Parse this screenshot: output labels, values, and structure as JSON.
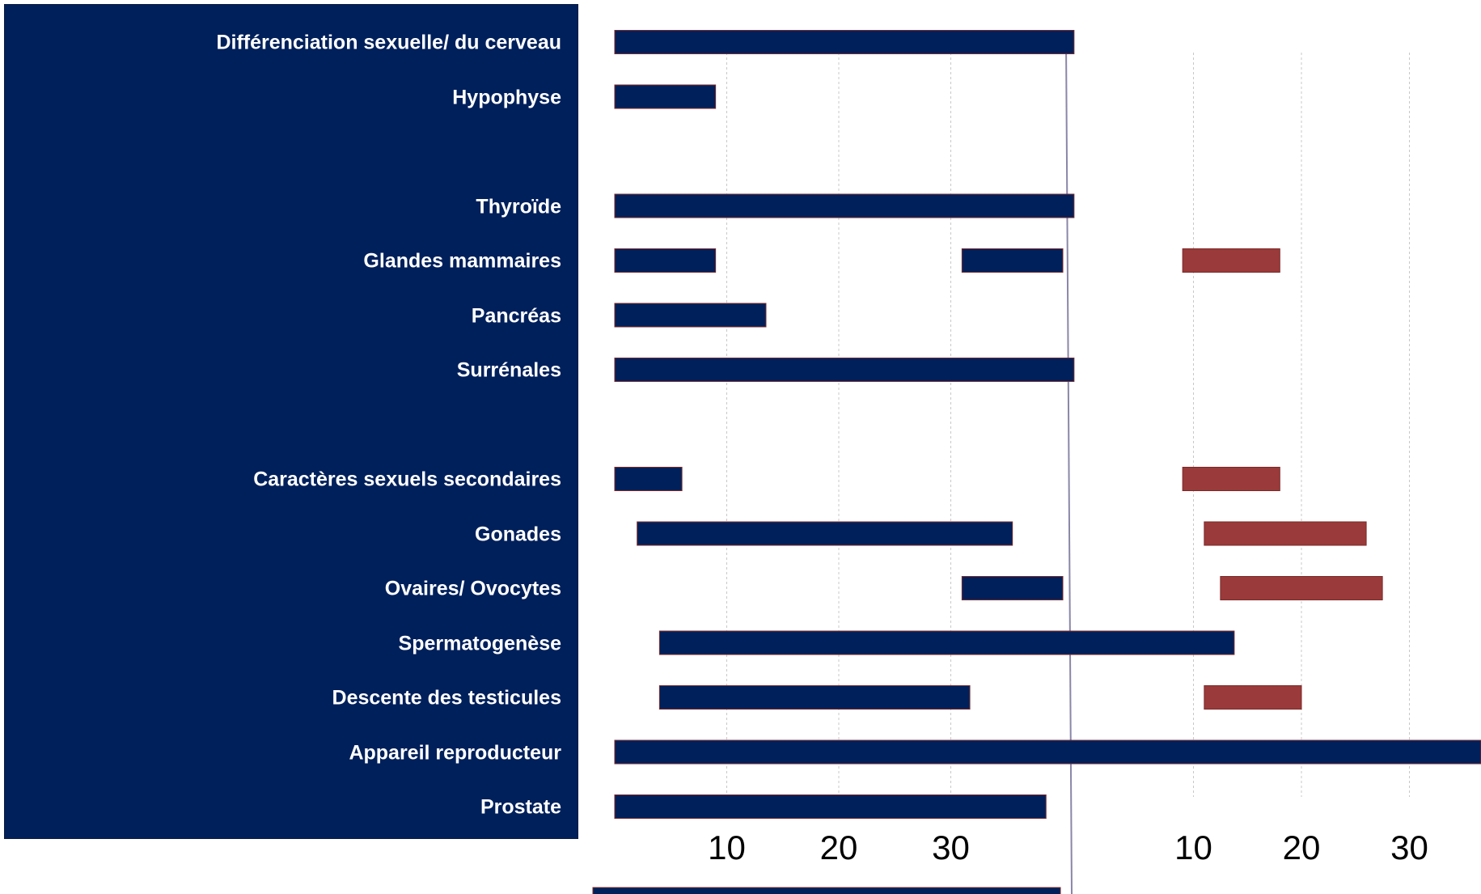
{
  "colors": {
    "panel": "#00205b",
    "prenatal_bar": "#00205b",
    "postnatal_bar": "#9b3a3a",
    "grid": "#c8c8c8",
    "birth_line": "#8a86a8"
  },
  "chart_data": {
    "type": "bar",
    "subtype": "horizontal-gantt",
    "title": "",
    "xlabel": "",
    "ylabel": "",
    "panels": [
      {
        "name": "",
        "xlim": [
          0,
          40
        ],
        "ticks": [
          10,
          20,
          30
        ]
      },
      {
        "name": "",
        "xlim": [
          0,
          40
        ],
        "ticks": [
          10,
          20,
          30
        ]
      }
    ],
    "categories": [
      "Différenciation sexuelle/ du cerveau",
      "Hypophyse",
      "",
      "Thyroïde",
      "Glandes mammaires",
      "Pancréas",
      "Surrénales",
      "",
      "Caractères sexuels secondaires",
      "Gonades",
      "Ovaires/ Ovocytes",
      "Spermatogenèse",
      "Descente des testicules",
      "Appareil reproducteur",
      "Prostate"
    ],
    "series": [
      {
        "name": "",
        "panel": 0,
        "color": "#00205b",
        "bars": [
          {
            "row": 0,
            "start": 0,
            "end": 41
          },
          {
            "row": 1,
            "start": 0,
            "end": 9
          },
          {
            "row": 3,
            "start": 0,
            "end": 41
          },
          {
            "row": 4,
            "start": 0,
            "end": 9
          },
          {
            "row": 4,
            "start": 31,
            "end": 40
          },
          {
            "row": 5,
            "start": 0,
            "end": 13.5
          },
          {
            "row": 6,
            "start": 0,
            "end": 41
          },
          {
            "row": 8,
            "start": 0,
            "end": 6
          },
          {
            "row": 9,
            "start": 2,
            "end": 35.5
          },
          {
            "row": 10,
            "start": 31,
            "end": 40
          },
          {
            "row": 11,
            "start": 4,
            "end": 55.3
          },
          {
            "row": 12,
            "start": 4,
            "end": 31.7
          },
          {
            "row": 13,
            "start": 0,
            "end": 78
          },
          {
            "row": 14,
            "start": 0,
            "end": 38.5
          }
        ]
      },
      {
        "name": "",
        "panel": 1,
        "color": "#9b3a3a",
        "bars": [
          {
            "row": 4,
            "start": 9,
            "end": 18
          },
          {
            "row": 8,
            "start": 9,
            "end": 18
          },
          {
            "row": 9,
            "start": 11,
            "end": 26
          },
          {
            "row": 10,
            "start": 12.5,
            "end": 27.5
          },
          {
            "row": 12,
            "start": 11,
            "end": 20
          }
        ]
      }
    ],
    "grid": true,
    "legend": "none"
  }
}
